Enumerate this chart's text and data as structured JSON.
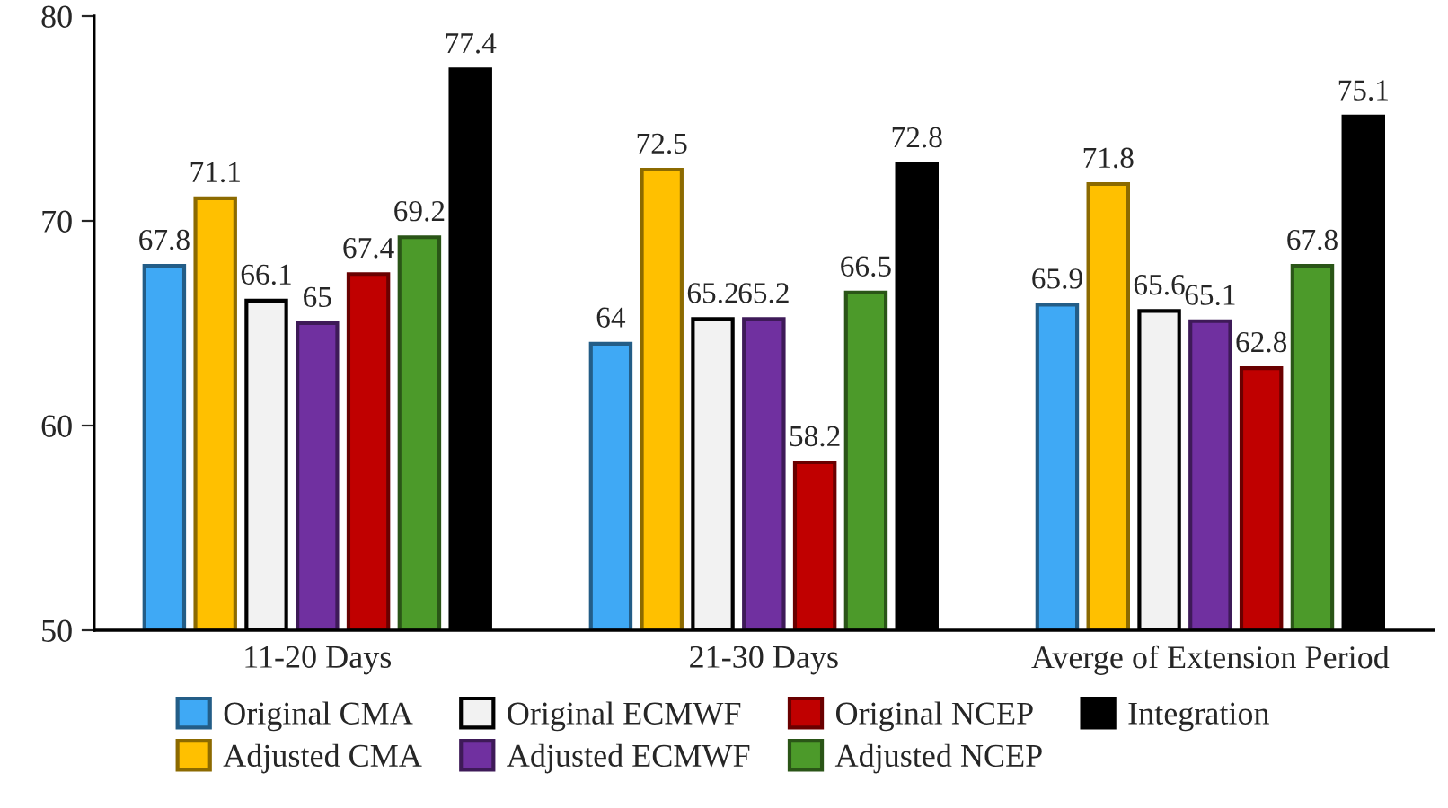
{
  "chart_data": {
    "type": "bar",
    "categories": [
      "11-20 Days",
      "21-30 Days",
      "Averge of Extension Period"
    ],
    "series": [
      {
        "name": "Original CMA",
        "color": "#3fa9f5",
        "values": [
          67.8,
          64,
          65.9
        ]
      },
      {
        "name": "Adjusted CMA",
        "color": "#ffc000",
        "values": [
          71.1,
          72.5,
          71.8
        ]
      },
      {
        "name": "Original ECMWF",
        "color": "#f2f2f2",
        "values": [
          66.1,
          65.2,
          65.6
        ]
      },
      {
        "name": "Adjusted ECMWF",
        "color": "#7030a0",
        "values": [
          65,
          65.2,
          65.1
        ]
      },
      {
        "name": "Original NCEP",
        "color": "#c00000",
        "values": [
          67.4,
          58.2,
          62.8
        ]
      },
      {
        "name": "Adjusted NCEP",
        "color": "#4c9a2a",
        "values": [
          69.2,
          66.5,
          67.8
        ]
      },
      {
        "name": "Integration",
        "color": "#000000",
        "values": [
          77.4,
          72.8,
          75.1
        ]
      }
    ],
    "ylim": [
      50,
      80
    ],
    "yticks": [
      50,
      60,
      70,
      80
    ],
    "data_labels": true,
    "grid": false,
    "legend": "bottom"
  }
}
